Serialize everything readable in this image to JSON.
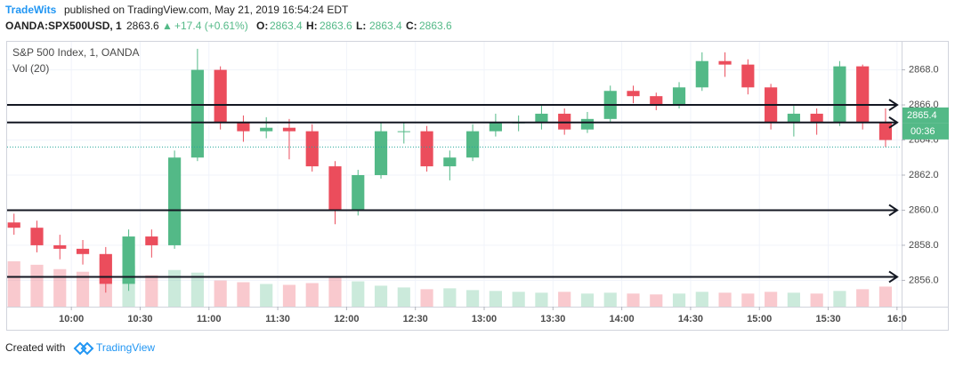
{
  "header": {
    "author": "TradeWits",
    "published": "published on TradingView.com, May 21, 2019 16:54:24 EDT",
    "symbol": "OANDA:SPX500USD, 1",
    "price": "2863.6",
    "change": "+17.4 (+0.61%)",
    "ohlc": [
      {
        "label": "O:",
        "value": "2863.4"
      },
      {
        "label": "H:",
        "value": "2863.6"
      },
      {
        "label": "L:",
        "value": "2863.4"
      },
      {
        "label": "C:",
        "value": "2863.6"
      }
    ]
  },
  "chart_data": {
    "type": "candlestick",
    "title": "S&P 500 Index, 1, OANDA",
    "volume_label": "Vol (20)",
    "x": [
      575,
      585,
      595,
      605,
      615,
      625,
      635,
      645,
      655,
      665,
      675,
      685,
      695,
      705,
      715,
      725,
      735,
      745,
      755,
      765,
      775,
      785,
      795,
      805,
      815,
      825,
      835,
      845,
      855,
      865,
      875,
      885,
      895,
      905,
      915,
      925,
      935,
      945,
      955
    ],
    "open": [
      2859.3,
      2859.0,
      2858.0,
      2857.8,
      2857.5,
      2855.8,
      2858.5,
      2858.0,
      2863.0,
      2868.0,
      2865.0,
      2864.5,
      2864.7,
      2864.5,
      2862.5,
      2860.0,
      2862.0,
      2864.5,
      2864.5,
      2862.5,
      2863.0,
      2864.5,
      2865.0,
      2865.0,
      2865.5,
      2864.6,
      2865.2,
      2866.8,
      2866.5,
      2866.0,
      2867.0,
      2868.5,
      2868.3,
      2867.0,
      2865.0,
      2865.5,
      2865.0,
      2868.2,
      2865.0
    ],
    "high": [
      2859.8,
      2859.4,
      2858.6,
      2858.3,
      2857.9,
      2858.9,
      2858.9,
      2863.4,
      2869.2,
      2868.2,
      2865.4,
      2865.3,
      2865.2,
      2864.9,
      2862.8,
      2862.3,
      2865.0,
      2865.0,
      2864.8,
      2863.4,
      2864.9,
      2865.5,
      2865.4,
      2866.0,
      2865.8,
      2865.6,
      2867.1,
      2867.1,
      2866.7,
      2867.3,
      2869.0,
      2869.0,
      2868.6,
      2867.2,
      2866.0,
      2865.8,
      2868.5,
      2868.3,
      2865.8
    ],
    "low": [
      2858.6,
      2857.6,
      2857.2,
      2856.9,
      2855.3,
      2855.4,
      2857.3,
      2857.8,
      2862.8,
      2864.6,
      2863.9,
      2864.1,
      2862.9,
      2862.2,
      2859.2,
      2859.7,
      2861.8,
      2863.8,
      2862.2,
      2861.7,
      2862.8,
      2864.2,
      2864.5,
      2864.6,
      2864.3,
      2864.4,
      2865.0,
      2866.1,
      2865.7,
      2865.8,
      2866.8,
      2867.6,
      2866.6,
      2864.6,
      2864.2,
      2864.3,
      2864.8,
      2864.6,
      2863.6
    ],
    "close": [
      2859.0,
      2858.0,
      2857.8,
      2857.5,
      2855.8,
      2858.5,
      2858.0,
      2863.0,
      2868.0,
      2865.0,
      2864.5,
      2864.7,
      2864.5,
      2862.5,
      2860.0,
      2862.0,
      2864.5,
      2864.5,
      2862.5,
      2863.0,
      2864.5,
      2865.0,
      2865.0,
      2865.5,
      2864.6,
      2865.2,
      2866.8,
      2866.5,
      2866.0,
      2867.0,
      2868.5,
      2868.3,
      2867.0,
      2865.0,
      2865.5,
      2865.0,
      2868.2,
      2865.0,
      2864.0
    ],
    "volume": [
      520,
      480,
      430,
      400,
      560,
      470,
      360,
      420,
      390,
      300,
      280,
      260,
      250,
      270,
      330,
      290,
      240,
      220,
      200,
      210,
      190,
      180,
      170,
      160,
      170,
      150,
      160,
      150,
      140,
      150,
      170,
      160,
      150,
      170,
      160,
      150,
      180,
      200,
      230
    ],
    "up_color": "#53b987",
    "down_color": "#eb4d5c",
    "levels": [
      2866.0,
      2865.0,
      2860.0,
      2856.2
    ],
    "level_color": "#131722",
    "last_price": 2863.6,
    "price_tag": {
      "value": 2865.4,
      "label": "2865.4"
    },
    "countdown": "00:36",
    "xlim": [
      572,
      962
    ],
    "ylim": [
      2854.5,
      2869.6
    ],
    "xticks": [
      {
        "value": 600,
        "label": "10:00"
      },
      {
        "value": 630,
        "label": "10:30"
      },
      {
        "value": 660,
        "label": "11:00"
      },
      {
        "value": 690,
        "label": "11:30"
      },
      {
        "value": 720,
        "label": "12:00"
      },
      {
        "value": 750,
        "label": "12:30"
      },
      {
        "value": 780,
        "label": "13:00"
      },
      {
        "value": 810,
        "label": "13:30"
      },
      {
        "value": 840,
        "label": "14:00"
      },
      {
        "value": 870,
        "label": "14:30"
      },
      {
        "value": 900,
        "label": "15:00"
      },
      {
        "value": 930,
        "label": "15:30"
      },
      {
        "value": 960,
        "label": "16:0"
      }
    ],
    "yticks": [
      {
        "value": 2856,
        "label": "2856.0"
      },
      {
        "value": 2858,
        "label": "2858.0"
      },
      {
        "value": 2860,
        "label": "2860.0"
      },
      {
        "value": 2862,
        "label": "2862.0"
      },
      {
        "value": 2864,
        "label": "2864.0"
      },
      {
        "value": 2866,
        "label": "2866.0"
      },
      {
        "value": 2868,
        "label": "2868.0"
      }
    ],
    "grid": true
  },
  "footer": {
    "created": "Created with",
    "brand": "TradingView"
  }
}
